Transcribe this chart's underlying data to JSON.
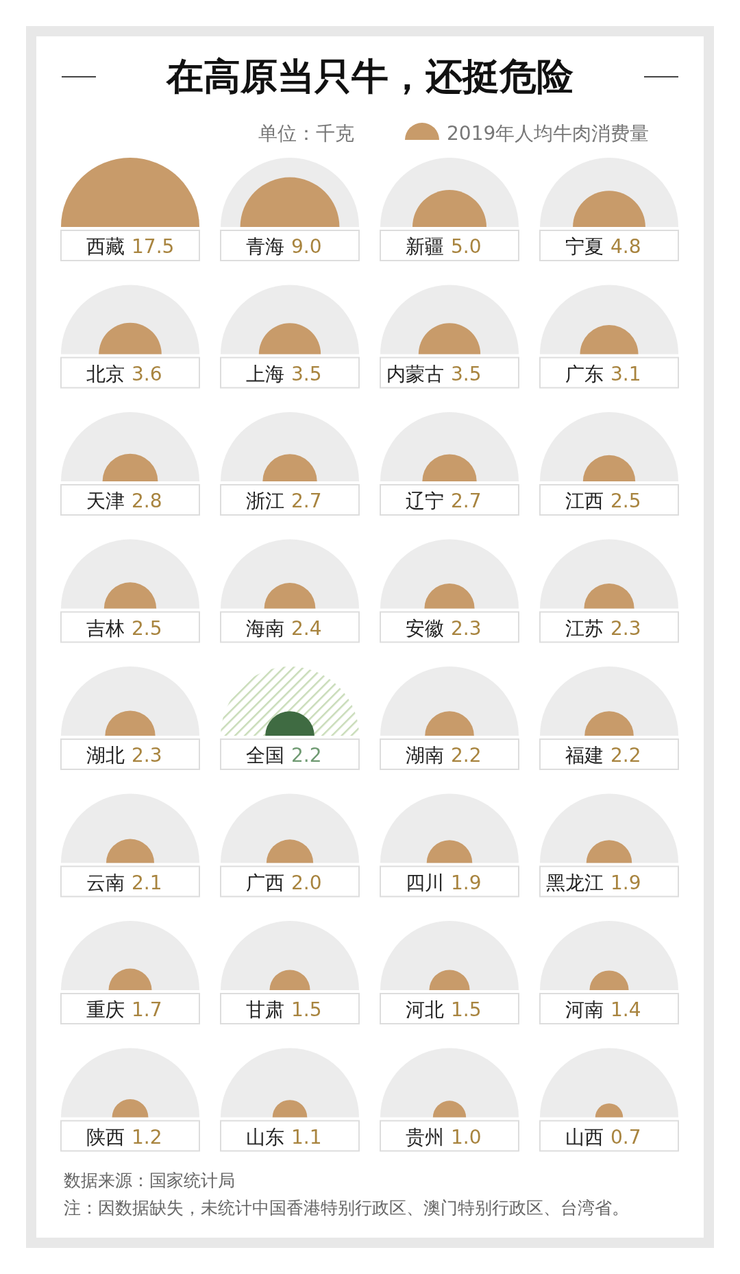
{
  "chart_data": {
    "type": "other",
    "title": "在高原当只牛，还挺危险",
    "subtitle": "单位：千克",
    "categories": [
      "西藏",
      "青海",
      "新疆",
      "宁夏",
      "北京",
      "上海",
      "内蒙古",
      "广东",
      "天津",
      "浙江",
      "辽宁",
      "江西",
      "吉林",
      "海南",
      "安徽",
      "江苏",
      "湖北",
      "全国",
      "湖南",
      "福建",
      "云南",
      "广西",
      "四川",
      "黑龙江",
      "重庆",
      "甘肃",
      "河北",
      "河南",
      "陕西",
      "山东",
      "贵州",
      "山西"
    ],
    "series": [
      {
        "name": "2019年人均牛肉消费量",
        "color": "#c89b6a",
        "values": [
          17.5,
          9.0,
          5.0,
          4.8,
          3.6,
          3.5,
          3.5,
          3.1,
          2.8,
          2.7,
          2.7,
          2.5,
          2.5,
          2.4,
          2.3,
          2.3,
          2.3,
          2.2,
          2.2,
          2.2,
          2.1,
          2.0,
          1.9,
          1.9,
          1.7,
          1.5,
          1.5,
          1.4,
          1.2,
          1.1,
          1.0,
          0.7
        ],
        "value_labels": [
          "17.5",
          "9.0",
          "5.0",
          "4.8",
          "3.6",
          "3.5",
          "3.5",
          "3.1",
          "2.8",
          "2.7",
          "2.7",
          "2.5",
          "2.5",
          "2.4",
          "2.3",
          "2.3",
          "2.3",
          "2.2",
          "2.2",
          "2.2",
          "2.1",
          "2.0",
          "1.9",
          "1.9",
          "1.7",
          "1.5",
          "1.5",
          "1.4",
          "1.2",
          "1.1",
          "1.0",
          "0.7"
        ]
      }
    ],
    "colors": [
      "#c89b6a",
      "#c89b6a",
      "#c89b6a",
      "#c89b6a",
      "#c89b6a",
      "#c89b6a",
      "#c89b6a",
      "#c89b6a",
      "#c89b6a",
      "#c89b6a",
      "#c89b6a",
      "#c89b6a",
      "#c89b6a",
      "#c89b6a",
      "#c89b6a",
      "#c89b6a",
      "#c89b6a",
      "#3f6b42",
      "#c89b6a",
      "#c89b6a",
      "#c89b6a",
      "#c89b6a",
      "#c89b6a",
      "#c89b6a",
      "#c89b6a",
      "#c89b6a",
      "#c89b6a",
      "#c89b6a",
      "#c89b6a",
      "#c89b6a",
      "#c89b6a",
      "#c89b6a"
    ],
    "legend": "top right",
    "annotations": [
      "数据来源：国家统计局",
      "注：因数据缺失，未统计中国香港特别行政区、澳门特别行政区、台湾省。"
    ]
  }
}
